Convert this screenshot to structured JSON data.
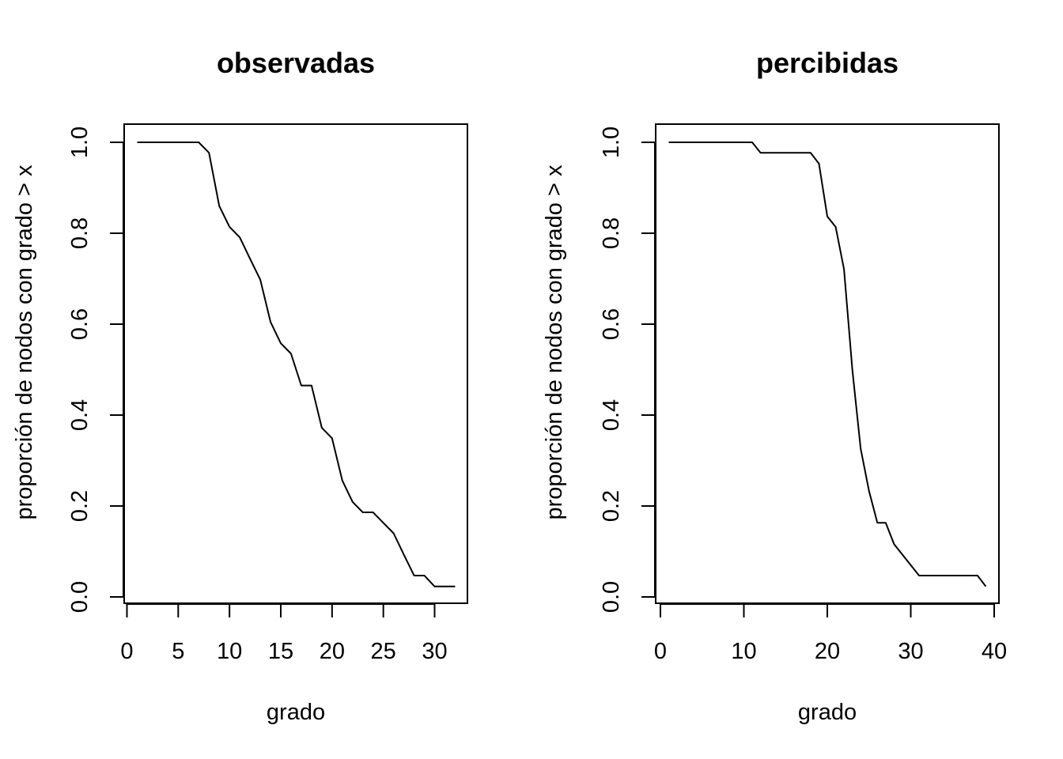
{
  "chart_data": [
    {
      "type": "line",
      "title": "observadas",
      "xlabel": "grado",
      "ylabel": "proporción de nodos con grado > x",
      "xlim": [
        0,
        32
      ],
      "ylim": [
        0,
        1
      ],
      "x_ticks": [
        0,
        5,
        10,
        15,
        20,
        25,
        30
      ],
      "y_ticks": [
        0.0,
        0.2,
        0.4,
        0.6,
        0.8,
        1.0
      ],
      "y_tick_labels": [
        "0.0",
        "0.2",
        "0.4",
        "0.6",
        "0.8",
        "1.0"
      ],
      "grid": false,
      "series": [
        {
          "x": [
            1,
            2,
            3,
            4,
            5,
            6,
            7,
            8,
            9,
            10,
            11,
            12,
            13,
            14,
            15,
            16,
            17,
            18,
            19,
            20,
            21,
            22,
            23,
            24,
            25,
            26,
            27,
            28,
            29,
            30,
            31,
            32
          ],
          "y": [
            1.0,
            1.0,
            1.0,
            1.0,
            1.0,
            1.0,
            1.0,
            0.977,
            0.86,
            0.814,
            0.791,
            0.744,
            0.698,
            0.605,
            0.558,
            0.535,
            0.465,
            0.465,
            0.372,
            0.349,
            0.256,
            0.209,
            0.186,
            0.186,
            0.163,
            0.14,
            0.093,
            0.047,
            0.047,
            0.023,
            0.023,
            0.023
          ]
        }
      ]
    },
    {
      "type": "line",
      "title": "percibidas",
      "xlabel": "grado",
      "ylabel": "proporción de nodos con grado > x",
      "xlim": [
        0,
        39
      ],
      "ylim": [
        0,
        1
      ],
      "x_ticks": [
        0,
        10,
        20,
        30,
        40
      ],
      "y_ticks": [
        0.0,
        0.2,
        0.4,
        0.6,
        0.8,
        1.0
      ],
      "y_tick_labels": [
        "0.0",
        "0.2",
        "0.4",
        "0.6",
        "0.8",
        "1.0"
      ],
      "grid": false,
      "series": [
        {
          "x": [
            1,
            2,
            3,
            4,
            5,
            6,
            7,
            8,
            9,
            10,
            11,
            12,
            13,
            14,
            15,
            16,
            17,
            18,
            19,
            20,
            21,
            22,
            23,
            24,
            25,
            26,
            27,
            28,
            29,
            30,
            31,
            32,
            33,
            34,
            35,
            36,
            37,
            38,
            39
          ],
          "y": [
            1.0,
            1.0,
            1.0,
            1.0,
            1.0,
            1.0,
            1.0,
            1.0,
            1.0,
            1.0,
            1.0,
            0.977,
            0.977,
            0.977,
            0.977,
            0.977,
            0.977,
            0.977,
            0.953,
            0.837,
            0.814,
            0.721,
            0.5,
            0.326,
            0.233,
            0.163,
            0.163,
            0.116,
            0.093,
            0.07,
            0.047,
            0.047,
            0.047,
            0.047,
            0.047,
            0.047,
            0.047,
            0.047,
            0.023
          ]
        }
      ]
    }
  ]
}
